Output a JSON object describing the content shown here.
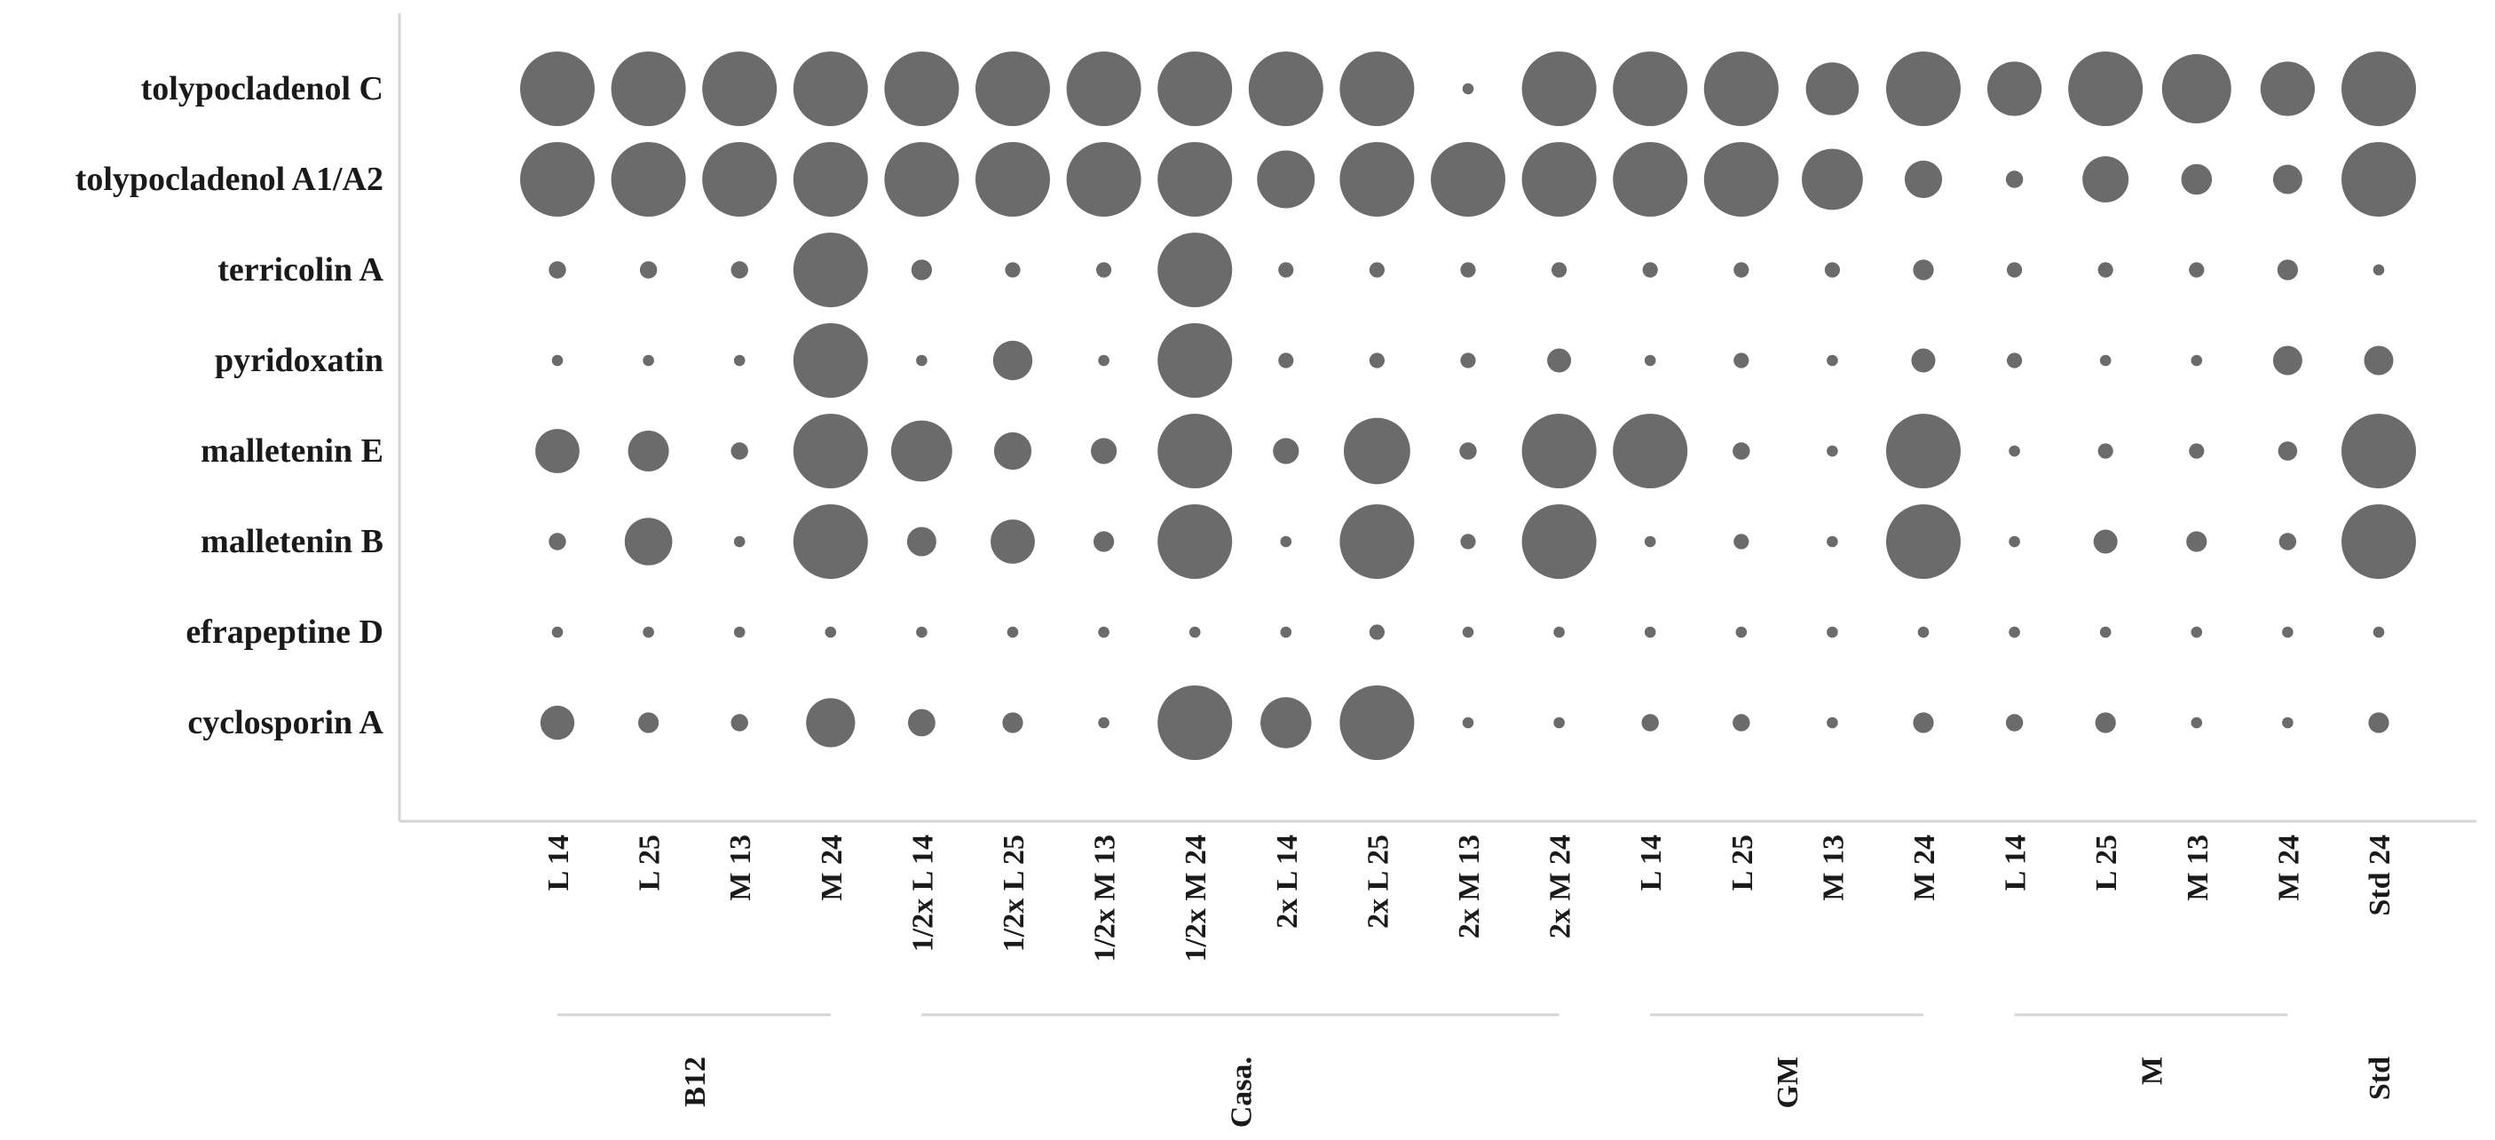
{
  "chart_data": {
    "type": "bubble",
    "title": "",
    "rows": [
      "tolypocladenol C",
      "tolypocladenol A1/A2",
      "terricolin A",
      "pyridoxatin",
      "malletenin E",
      "malletenin B",
      "efrapeptine D",
      "cyclosporin A"
    ],
    "columns": [
      {
        "label": "L 14",
        "group": "B12"
      },
      {
        "label": "L 25",
        "group": "B12"
      },
      {
        "label": "M 13",
        "group": "B12"
      },
      {
        "label": "M 24",
        "group": "B12"
      },
      {
        "label": "1/2x L 14",
        "group": "Casa."
      },
      {
        "label": "1/2x L 25",
        "group": "Casa."
      },
      {
        "label": "1/2x M 13",
        "group": "Casa."
      },
      {
        "label": "1/2x M 24",
        "group": "Casa."
      },
      {
        "label": "2x L 14",
        "group": "Casa."
      },
      {
        "label": "2x L 25",
        "group": "Casa."
      },
      {
        "label": "2x M 13",
        "group": "Casa."
      },
      {
        "label": "2x M 24",
        "group": "Casa."
      },
      {
        "label": "L 14",
        "group": "GM"
      },
      {
        "label": "L 25",
        "group": "GM"
      },
      {
        "label": "M 13",
        "group": "GM"
      },
      {
        "label": "M 24",
        "group": "GM"
      },
      {
        "label": "L 14",
        "group": "M"
      },
      {
        "label": "L 25",
        "group": "M"
      },
      {
        "label": "M 13",
        "group": "M"
      },
      {
        "label": "M 24",
        "group": "M"
      },
      {
        "label": "Std 24",
        "group": "Std"
      }
    ],
    "groups": [
      "B12",
      "Casa.",
      "GM",
      "M",
      "Std"
    ],
    "size_scale_note": "relative bubble size (1.0 = largest)",
    "values": [
      [
        1.0,
        1.0,
        1.0,
        1.0,
        1.0,
        1.0,
        1.0,
        1.0,
        1.0,
        1.0,
        0.06,
        1.0,
        1.0,
        1.0,
        0.68,
        1.0,
        0.7,
        1.0,
        0.92,
        0.7,
        1.0
      ],
      [
        1.0,
        1.0,
        1.0,
        1.0,
        1.0,
        1.0,
        1.0,
        1.0,
        0.75,
        1.0,
        1.0,
        1.0,
        1.0,
        1.0,
        0.8,
        0.45,
        0.15,
        0.58,
        0.35,
        0.33,
        1.0
      ],
      [
        0.15,
        0.15,
        0.15,
        1.0,
        0.2,
        0.12,
        0.12,
        1.0,
        0.12,
        0.12,
        0.12,
        0.12,
        0.12,
        0.12,
        0.12,
        0.2,
        0.12,
        0.12,
        0.12,
        0.2,
        0.06
      ],
      [
        0.06,
        0.06,
        0.06,
        1.0,
        0.06,
        0.48,
        0.06,
        1.0,
        0.12,
        0.12,
        0.12,
        0.25,
        0.06,
        0.12,
        0.06,
        0.25,
        0.12,
        0.06,
        0.06,
        0.33,
        0.33
      ],
      [
        0.55,
        0.5,
        0.15,
        1.0,
        0.8,
        0.45,
        0.28,
        1.0,
        0.28,
        0.88,
        0.15,
        1.0,
        1.0,
        0.15,
        0.06,
        1.0,
        0.06,
        0.12,
        0.12,
        0.18,
        1.0
      ],
      [
        0.15,
        0.6,
        0.06,
        1.0,
        0.33,
        0.55,
        0.2,
        1.0,
        0.06,
        1.0,
        0.12,
        1.0,
        0.06,
        0.12,
        0.06,
        1.0,
        0.06,
        0.25,
        0.2,
        0.15,
        1.0
      ],
      [
        0.06,
        0.06,
        0.06,
        0.06,
        0.06,
        0.06,
        0.06,
        0.06,
        0.06,
        0.12,
        0.06,
        0.06,
        0.06,
        0.06,
        0.06,
        0.06,
        0.06,
        0.06,
        0.06,
        0.06,
        0.06
      ],
      [
        0.4,
        0.2,
        0.15,
        0.62,
        0.3,
        0.2,
        0.06,
        1.0,
        0.65,
        1.0,
        0.06,
        0.06,
        0.15,
        0.15,
        0.06,
        0.2,
        0.15,
        0.2,
        0.06,
        0.06,
        0.2
      ]
    ],
    "bubble_color": "#6b6b6b",
    "axis_color": "#d4d4d4",
    "grid": false,
    "legend": "none"
  }
}
